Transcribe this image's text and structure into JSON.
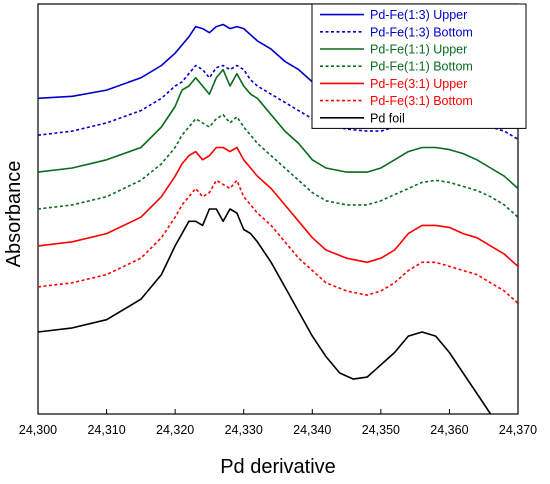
{
  "chart_data": {
    "type": "line",
    "title": "",
    "xlabel": "Pd derivative",
    "ylabel": "Absorbance",
    "xlim": [
      24300,
      24370
    ],
    "ylim": [
      0,
      1
    ],
    "xticks": [
      24300,
      24310,
      24320,
      24330,
      24340,
      24350,
      24360,
      24370
    ],
    "xtick_labels": [
      "24,300",
      "24,310",
      "24,320",
      "24,330",
      "24,340",
      "24,350",
      "24,360",
      "24,370"
    ],
    "show_yticks": false,
    "grid": false,
    "legend_position": "top-right",
    "series": [
      {
        "name": "Pd-Fe(1:3) Upper",
        "color": "#0000cc",
        "dash": "solid",
        "x": [
          24300,
          24305,
          24310,
          24315,
          24318,
          24320,
          24321,
          24322,
          24323,
          24324,
          24325,
          24326,
          24327,
          24328,
          24329,
          24330,
          24331,
          24332,
          24334,
          24336,
          24338,
          24340,
          24342,
          24345,
          24348,
          24350,
          24352,
          24354,
          24356,
          24358,
          24360,
          24362,
          24364,
          24366,
          24368,
          24370
        ],
        "y": [
          0.77,
          0.775,
          0.79,
          0.82,
          0.85,
          0.88,
          0.9,
          0.92,
          0.945,
          0.94,
          0.93,
          0.945,
          0.95,
          0.94,
          0.945,
          0.94,
          0.925,
          0.91,
          0.89,
          0.86,
          0.84,
          0.81,
          0.79,
          0.78,
          0.78,
          0.785,
          0.8,
          0.82,
          0.835,
          0.84,
          0.84,
          0.835,
          0.82,
          0.8,
          0.78,
          0.75
        ]
      },
      {
        "name": "Pd-Fe(1:3) Bottom",
        "color": "#0000cc",
        "dash": "dotted",
        "x": [
          24300,
          24305,
          24310,
          24315,
          24318,
          24320,
          24321,
          24322,
          24323,
          24324,
          24325,
          24326,
          24327,
          24328,
          24329,
          24330,
          24331,
          24332,
          24334,
          24336,
          24338,
          24340,
          24342,
          24345,
          24348,
          24350,
          24352,
          24354,
          24356,
          24358,
          24360,
          24362,
          24364,
          24366,
          24368,
          24370
        ],
        "y": [
          0.68,
          0.69,
          0.71,
          0.74,
          0.77,
          0.8,
          0.81,
          0.83,
          0.85,
          0.84,
          0.82,
          0.845,
          0.85,
          0.84,
          0.85,
          0.84,
          0.815,
          0.8,
          0.78,
          0.76,
          0.74,
          0.72,
          0.705,
          0.695,
          0.69,
          0.69,
          0.7,
          0.72,
          0.735,
          0.74,
          0.735,
          0.725,
          0.71,
          0.7,
          0.69,
          0.67
        ]
      },
      {
        "name": "Pd-Fe(1:1) Upper",
        "color": "#0a6b1f",
        "dash": "solid",
        "x": [
          24300,
          24305,
          24310,
          24315,
          24318,
          24320,
          24321,
          24322,
          24323,
          24324,
          24325,
          24326,
          24327,
          24328,
          24329,
          24330,
          24331,
          24332,
          24334,
          24336,
          24338,
          24340,
          24342,
          24345,
          24348,
          24350,
          24352,
          24354,
          24356,
          24358,
          24360,
          24362,
          24364,
          24366,
          24368,
          24370
        ],
        "y": [
          0.59,
          0.6,
          0.62,
          0.65,
          0.7,
          0.75,
          0.79,
          0.8,
          0.82,
          0.8,
          0.78,
          0.82,
          0.84,
          0.8,
          0.83,
          0.8,
          0.78,
          0.77,
          0.73,
          0.69,
          0.66,
          0.62,
          0.6,
          0.59,
          0.59,
          0.6,
          0.62,
          0.64,
          0.65,
          0.65,
          0.645,
          0.635,
          0.62,
          0.6,
          0.58,
          0.55
        ]
      },
      {
        "name": "Pd-Fe(1:1) Bottom",
        "color": "#0a6b1f",
        "dash": "dotted",
        "x": [
          24300,
          24305,
          24310,
          24315,
          24318,
          24320,
          24321,
          24322,
          24323,
          24324,
          24325,
          24326,
          24327,
          24328,
          24329,
          24330,
          24331,
          24332,
          24334,
          24336,
          24338,
          24340,
          24342,
          24345,
          24348,
          24350,
          24352,
          24354,
          24356,
          24358,
          24360,
          24362,
          24364,
          24366,
          24368,
          24370
        ],
        "y": [
          0.5,
          0.51,
          0.53,
          0.57,
          0.61,
          0.65,
          0.68,
          0.7,
          0.72,
          0.71,
          0.7,
          0.72,
          0.73,
          0.71,
          0.725,
          0.7,
          0.68,
          0.66,
          0.63,
          0.6,
          0.57,
          0.54,
          0.52,
          0.51,
          0.51,
          0.52,
          0.535,
          0.55,
          0.565,
          0.57,
          0.565,
          0.555,
          0.545,
          0.53,
          0.51,
          0.48
        ]
      },
      {
        "name": "Pd-Fe(3:1) Upper",
        "color": "#ff0000",
        "dash": "solid",
        "x": [
          24300,
          24305,
          24310,
          24315,
          24318,
          24320,
          24321,
          24322,
          24323,
          24324,
          24325,
          24326,
          24327,
          24328,
          24329,
          24330,
          24331,
          24332,
          24334,
          24336,
          24338,
          24340,
          24342,
          24345,
          24348,
          24350,
          24352,
          24354,
          24356,
          24358,
          24360,
          24362,
          24364,
          24366,
          24368,
          24370
        ],
        "y": [
          0.41,
          0.42,
          0.44,
          0.48,
          0.53,
          0.58,
          0.61,
          0.63,
          0.64,
          0.62,
          0.63,
          0.65,
          0.65,
          0.64,
          0.65,
          0.62,
          0.6,
          0.58,
          0.55,
          0.51,
          0.47,
          0.43,
          0.4,
          0.38,
          0.37,
          0.38,
          0.4,
          0.44,
          0.46,
          0.46,
          0.455,
          0.44,
          0.43,
          0.41,
          0.39,
          0.36
        ]
      },
      {
        "name": "Pd-Fe(3:1) Bottom",
        "color": "#ff0000",
        "dash": "dotted",
        "x": [
          24300,
          24305,
          24310,
          24315,
          24318,
          24320,
          24321,
          24322,
          24323,
          24324,
          24325,
          24326,
          24327,
          24328,
          24329,
          24330,
          24331,
          24332,
          24334,
          24336,
          24338,
          24340,
          24342,
          24345,
          24348,
          24350,
          24352,
          24354,
          24356,
          24358,
          24360,
          24362,
          24364,
          24366,
          24368,
          24370
        ],
        "y": [
          0.31,
          0.32,
          0.34,
          0.38,
          0.43,
          0.48,
          0.51,
          0.53,
          0.55,
          0.53,
          0.54,
          0.57,
          0.56,
          0.55,
          0.57,
          0.53,
          0.51,
          0.49,
          0.46,
          0.42,
          0.38,
          0.35,
          0.32,
          0.3,
          0.29,
          0.3,
          0.32,
          0.35,
          0.37,
          0.37,
          0.36,
          0.35,
          0.34,
          0.32,
          0.3,
          0.27
        ]
      },
      {
        "name": "Pd foil",
        "color": "#000000",
        "dash": "solid",
        "x": [
          24300,
          24305,
          24310,
          24315,
          24318,
          24320,
          24321,
          24322,
          24323,
          24324,
          24325,
          24326,
          24327,
          24328,
          24329,
          24330,
          24331,
          24332,
          24334,
          24336,
          24338,
          24340,
          24342,
          24344,
          24346,
          24348,
          24350,
          24352,
          24354,
          24356,
          24358,
          24360,
          24362,
          24364,
          24366
        ],
        "y": [
          0.2,
          0.21,
          0.23,
          0.28,
          0.34,
          0.41,
          0.44,
          0.47,
          0.47,
          0.46,
          0.5,
          0.5,
          0.47,
          0.5,
          0.49,
          0.45,
          0.44,
          0.42,
          0.37,
          0.31,
          0.25,
          0.19,
          0.14,
          0.1,
          0.085,
          0.09,
          0.12,
          0.15,
          0.19,
          0.2,
          0.19,
          0.15,
          0.1,
          0.05,
          0.0
        ]
      }
    ]
  }
}
